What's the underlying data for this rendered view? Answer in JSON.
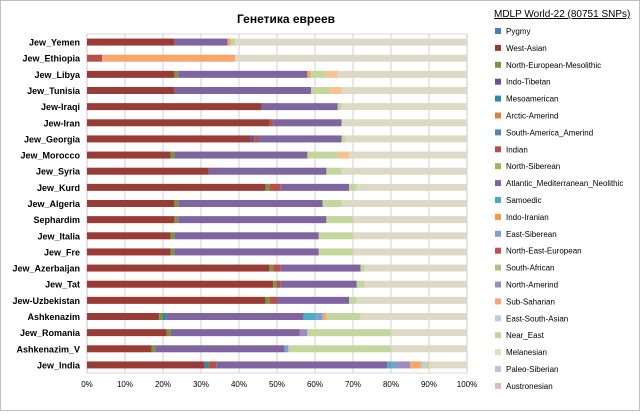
{
  "chart_data": {
    "type": "bar",
    "orientation": "horizontal",
    "stacked": "percent",
    "title": "Генетика евреев",
    "legend_title": "MDLP World-22 (80751 SNPs)",
    "legend_position": "right",
    "grid": true,
    "xlim": [
      0,
      100
    ],
    "x_ticks": [
      "0%",
      "10%",
      "20%",
      "30%",
      "40%",
      "50%",
      "60%",
      "70%",
      "80%",
      "90%",
      "100%"
    ],
    "categories": [
      "Jew_Yemen",
      "Jew_Ethiopia",
      "Jew_Libya",
      "Jew_Tunisia",
      "Jew-Iraqi",
      "Jew-Iran",
      "Jew_Georgia",
      "Jew_Morocco",
      "Jew_Syria",
      "Jew_Kurd",
      "Jew_Algeria",
      "Sephardim",
      "Jew_Italia",
      "Jew_Fre",
      "Jew_Azerbaijan",
      "Jew_Tat",
      "Jew-Uzbekistan",
      "Ashkenazim",
      "Jew_Romania",
      "Ashkenazim_V",
      "Jew_India"
    ],
    "series": [
      {
        "name": "Pygmy",
        "color": "#4a7ebb",
        "values": [
          0,
          0,
          0,
          0,
          0,
          0,
          0,
          0,
          0,
          0,
          0,
          0,
          0,
          0,
          0,
          0,
          0,
          0,
          0,
          0,
          0
        ]
      },
      {
        "name": "West-Asian",
        "color": "#9b3b36",
        "values": [
          23,
          0,
          23,
          23,
          46,
          48,
          43,
          22,
          32,
          47,
          23,
          23,
          22,
          22,
          48,
          49,
          47,
          19,
          21,
          17,
          31
        ]
      },
      {
        "name": "North-European-Mesolithic",
        "color": "#7a9440",
        "values": [
          0,
          0,
          1,
          0,
          0,
          0,
          0,
          1,
          0,
          1,
          1,
          1,
          1,
          1,
          1,
          1,
          1,
          1,
          1,
          1,
          0
        ]
      },
      {
        "name": "Indo-Tibetan",
        "color": "#6b4f8f",
        "values": [
          0,
          0,
          0,
          0,
          0,
          0,
          1,
          0,
          0,
          0,
          0,
          0,
          0,
          0,
          0,
          0,
          0,
          0,
          0,
          0,
          0
        ]
      },
      {
        "name": "Mesoamerican",
        "color": "#2f8aa5",
        "values": [
          0,
          0,
          0,
          0,
          0,
          0,
          0,
          0,
          0,
          0,
          0,
          0,
          0,
          0,
          0,
          0,
          0,
          1,
          0,
          0,
          1
        ]
      },
      {
        "name": "Arctic-Amerind",
        "color": "#d8843a",
        "values": [
          0,
          0,
          0,
          0,
          0,
          0,
          0,
          0,
          0,
          0,
          0,
          0,
          0,
          0,
          0,
          0,
          0,
          0,
          0,
          0,
          0
        ]
      },
      {
        "name": "South-America_Amerind",
        "color": "#5a80b8",
        "values": [
          0,
          0,
          0,
          0,
          0,
          0,
          0,
          0,
          0,
          0,
          0,
          0,
          0,
          0,
          0,
          0,
          0,
          0,
          0,
          0,
          0
        ]
      },
      {
        "name": "Indian",
        "color": "#b84f4a",
        "values": [
          0,
          4,
          0,
          0,
          0,
          1,
          1,
          0,
          0,
          3,
          0,
          0,
          0,
          0,
          2,
          1,
          2,
          0,
          0,
          0,
          2
        ]
      },
      {
        "name": "North-Siberean",
        "color": "#9bbb59",
        "values": [
          0,
          0,
          0,
          0,
          0,
          0,
          0,
          0,
          0,
          0,
          0,
          0,
          0,
          0,
          0,
          0,
          0,
          0,
          0,
          0,
          0
        ]
      },
      {
        "name": "Atlantic_Mediterranean_Neolithic",
        "color": "#8064a2",
        "values": [
          14,
          0,
          34,
          36,
          20,
          18,
          22,
          35,
          31,
          18,
          38,
          39,
          38,
          38,
          21,
          20,
          19,
          36,
          34,
          34,
          45
        ]
      },
      {
        "name": "Samoedic",
        "color": "#4bacc6",
        "values": [
          0,
          0,
          0,
          0,
          0,
          0,
          0,
          0,
          0,
          0,
          0,
          0,
          0,
          0,
          0,
          0,
          0,
          3,
          0,
          0,
          1
        ]
      },
      {
        "name": "Indo-Iranian",
        "color": "#f79646",
        "values": [
          0,
          0,
          0,
          0,
          0,
          0,
          0,
          0,
          0,
          0,
          0,
          0,
          0,
          0,
          0,
          0,
          0,
          0,
          0,
          0,
          0
        ]
      },
      {
        "name": "East-Siberean",
        "color": "#7f9fcf",
        "values": [
          0,
          0,
          0,
          0,
          0,
          0,
          0,
          0,
          0,
          0,
          0,
          0,
          0,
          0,
          0,
          0,
          0,
          2,
          0,
          1,
          2
        ]
      },
      {
        "name": "North-East-European",
        "color": "#c0504d",
        "values": [
          0,
          0,
          0,
          0,
          0,
          0,
          0,
          0,
          0,
          0,
          0,
          0,
          0,
          0,
          0,
          0,
          0,
          0,
          0,
          0,
          0
        ]
      },
      {
        "name": "South-African",
        "color": "#a9c47f",
        "values": [
          0,
          0,
          0,
          0,
          0,
          0,
          0,
          0,
          0,
          0,
          0,
          0,
          0,
          0,
          0,
          0,
          0,
          0,
          0,
          0,
          0
        ]
      },
      {
        "name": "North-Amerind",
        "color": "#9e8bbf",
        "values": [
          0,
          0,
          0,
          0,
          0,
          0,
          0,
          0,
          0,
          0,
          0,
          0,
          0,
          0,
          0,
          0,
          0,
          0,
          2,
          0,
          3
        ]
      },
      {
        "name": "Sub-Saharian",
        "color": "#f9a56b",
        "values": [
          1,
          35,
          1,
          0,
          0,
          0,
          0,
          0,
          0,
          0,
          0,
          0,
          0,
          0,
          0,
          0,
          0,
          1,
          0,
          0,
          3
        ]
      },
      {
        "name": "East-South-Asian",
        "color": "#b9cde5",
        "values": [
          0,
          0,
          0,
          0,
          0,
          0,
          0,
          0,
          0,
          0,
          0,
          0,
          0,
          0,
          0,
          0,
          0,
          0,
          0,
          0,
          1
        ]
      },
      {
        "name": "Near_East",
        "color": "#c3d69b",
        "values": [
          1,
          0,
          4,
          5,
          1,
          0,
          1,
          8,
          4,
          2,
          5,
          7,
          9,
          9,
          1,
          2,
          2,
          9,
          22,
          27,
          1
        ]
      },
      {
        "name": "Melanesian",
        "color": "#d7e4bd",
        "values": [
          0,
          0,
          0,
          0,
          0,
          0,
          0,
          0,
          0,
          0,
          0,
          0,
          0,
          0,
          0,
          0,
          0,
          0,
          0,
          0,
          0
        ]
      },
      {
        "name": "Paleo-Siberian",
        "color": "#c9bed9",
        "values": [
          0,
          0,
          0,
          0,
          0,
          0,
          0,
          0,
          0,
          0,
          0,
          0,
          0,
          0,
          0,
          0,
          0,
          0,
          0,
          0,
          0
        ]
      },
      {
        "name": "Austronesian",
        "color": "#e6b9b8",
        "values": [
          0,
          0,
          0,
          0,
          0,
          0,
          0,
          0,
          0,
          0,
          0,
          0,
          0,
          0,
          0,
          0,
          0,
          0,
          0,
          0,
          0
        ]
      },
      {
        "name": "",
        "color": "#fac090",
        "values": [
          0,
          0,
          3,
          3,
          0,
          0,
          0,
          3,
          0,
          0,
          0,
          0,
          0,
          0,
          0,
          0,
          0,
          0,
          0,
          0,
          0
        ]
      },
      {
        "name": "",
        "color": "#ddd9c4",
        "values": [
          61,
          61,
          34,
          33,
          33,
          33,
          32,
          31,
          33,
          29,
          33,
          30,
          30,
          30,
          27,
          27,
          29,
          28,
          20,
          20,
          10
        ]
      }
    ]
  }
}
